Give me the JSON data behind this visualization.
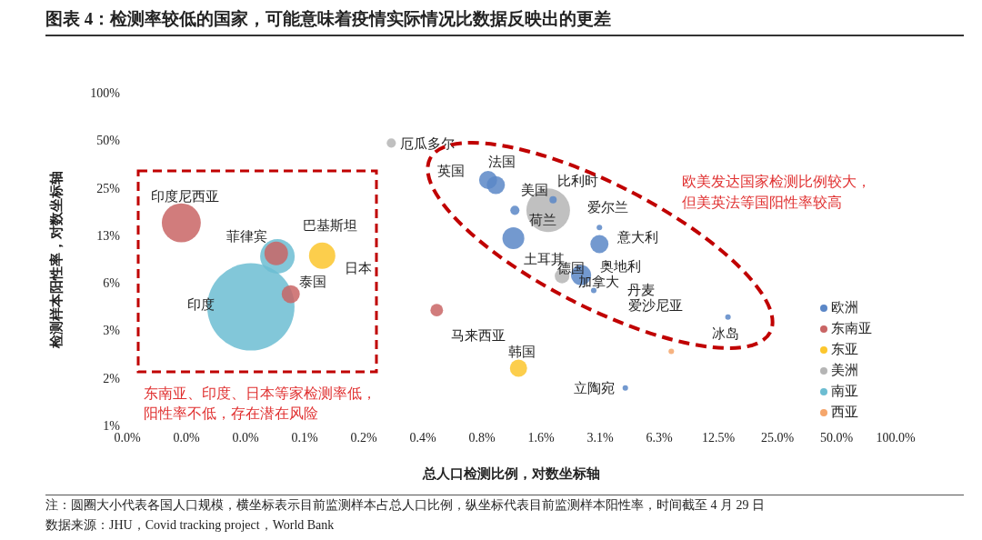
{
  "chart_data": {
    "type": "bubble",
    "title": "图表 4：检测率较低的国家，可能意味着疫情实际情况比数据反映出的更差",
    "xlabel": "总人口检测比例，对数坐标轴",
    "ylabel": "检测样本阳性率，对数坐标轴",
    "log": "xy",
    "marker": "circle",
    "legend": "bottom right",
    "xlim": [
      0.01220703125,
      100
    ],
    "xticks": [
      {
        "value": 0.01220703125,
        "label": "0.0%"
      },
      {
        "value": 0.0244140625,
        "label": "0.0%"
      },
      {
        "value": 0.048828125,
        "label": "0.0%"
      },
      {
        "value": 0.09765625,
        "label": "0.1%"
      },
      {
        "value": 0.1953125,
        "label": "0.2%"
      },
      {
        "value": 0.390625,
        "label": "0.4%"
      },
      {
        "value": 0.78125,
        "label": "0.8%"
      },
      {
        "value": 1.5625,
        "label": "1.6%"
      },
      {
        "value": 3.125,
        "label": "3.1%"
      },
      {
        "value": 6.25,
        "label": "6.3%"
      },
      {
        "value": 12.5,
        "label": "12.5%"
      },
      {
        "value": 25,
        "label": "25.0%"
      },
      {
        "value": 50,
        "label": "50.0%"
      },
      {
        "value": 100,
        "label": "100.0%"
      }
    ],
    "ylim": [
      0.78125,
      100
    ],
    "yticks": [
      {
        "value": 0.78125,
        "label": "1%"
      },
      {
        "value": 1.5625,
        "label": "2%"
      },
      {
        "value": 3.125,
        "label": "3%"
      },
      {
        "value": 6.25,
        "label": "6%"
      },
      {
        "value": 12.5,
        "label": "13%"
      },
      {
        "value": 25,
        "label": "25%"
      },
      {
        "value": 50,
        "label": "50%"
      },
      {
        "value": 100,
        "label": "100%"
      }
    ],
    "series": [
      {
        "name": "欧洲",
        "color": "#5b87c7",
        "x": [
          0.84,
          0.92,
          1.15,
          1.8,
          1.13,
          3.1,
          3.1,
          2.5,
          2.9,
          14,
          4.2
        ],
        "values": [
          28,
          26,
          18,
          21,
          12,
          11,
          14,
          7.0,
          5.6,
          3.8,
          1.35
        ],
        "sizes": [
          0.043,
          0.043,
          0.011,
          0.007,
          0.063,
          0.043,
          0.004,
          0.053,
          0.004,
          0.004,
          0.004
        ]
      },
      {
        "name": "东南亚",
        "color": "#c96565",
        "x": [
          0.023,
          0.07,
          0.083,
          0.46
        ],
        "values": [
          15,
          9.6,
          5.3,
          4.2
        ],
        "sizes": [
          0.2,
          0.073,
          0.043,
          0.021
        ]
      },
      {
        "name": "东亚",
        "color": "#fcc62d",
        "x": [
          0.12,
          1.2
        ],
        "values": [
          9.3,
          1.8
        ],
        "sizes": [
          0.091,
          0.039
        ]
      },
      {
        "name": "美洲",
        "color": "#b5b5b5",
        "x": [
          0.27,
          1.7,
          2.0
        ],
        "values": [
          48,
          18,
          6.9
        ],
        "sizes": [
          0.011,
          0.25,
          0.028
        ]
      },
      {
        "name": "南亚",
        "color": "#6cbdd2",
        "x": [
          0.052,
          0.071
        ],
        "values": [
          4.4,
          9.2
        ],
        "sizes": [
          1,
          0.157
        ]
      },
      {
        "name": "西亚",
        "color": "#f5a66b",
        "x": [
          7.2
        ],
        "values": [
          2.3
        ],
        "sizes": [
          0.004
        ]
      }
    ],
    "annotations": [
      {
        "text": "厄瓜多尔",
        "x": 0.27,
        "y": 48
      },
      {
        "text": "英国",
        "x": 0.84,
        "y": 28
      },
      {
        "text": "法国",
        "x": 0.92,
        "y": 26
      },
      {
        "text": "美国",
        "x": 1.7,
        "y": 18
      },
      {
        "text": "荷兰",
        "x": 1.15,
        "y": 18
      },
      {
        "text": "比利时",
        "x": 1.8,
        "y": 21
      },
      {
        "text": "爱尔兰",
        "x": 3.1,
        "y": 14
      },
      {
        "text": "意大利",
        "x": 3.1,
        "y": 11
      },
      {
        "text": "土耳其",
        "x": 1.13,
        "y": 12
      },
      {
        "text": "德国",
        "x": 2.5,
        "y": 7.0
      },
      {
        "text": "奥地利",
        "x": 2.9,
        "y": 5.6
      },
      {
        "text": "加拿大",
        "x": 2.0,
        "y": 6.9
      },
      {
        "text": "丹麦",
        "x": 2.9,
        "y": 5.6
      },
      {
        "text": "爱沙尼亚",
        "x": 2.9,
        "y": 5.6
      },
      {
        "text": "冰岛",
        "x": 14,
        "y": 3.8
      },
      {
        "text": "马来西亚",
        "x": 0.46,
        "y": 4.2
      },
      {
        "text": "韩国",
        "x": 1.2,
        "y": 1.8
      },
      {
        "text": "立陶宛",
        "x": 4.2,
        "y": 1.35
      },
      {
        "text": "印度尼西亚",
        "x": 0.023,
        "y": 15
      },
      {
        "text": "菲律宾",
        "x": 0.07,
        "y": 9.6
      },
      {
        "text": "巴基斯坦",
        "x": 0.071,
        "y": 9.2
      },
      {
        "text": "日本",
        "x": 0.12,
        "y": 9.3
      },
      {
        "text": "泰国",
        "x": 0.083,
        "y": 5.3
      },
      {
        "text": "印度",
        "x": 0.052,
        "y": 4.4
      },
      "东南亚、印度、日本等家检测率低，阳性率不低，存在潜在风险",
      "欧美发达国家检测比例较大，但美英法等国阳性率较高",
      "注：圆圈大小代表各国人口规模，横坐标表示目前监测样本占总人口比例，纵坐标代表目前监测样本阳性率，时间截至 4 月 29 日",
      "数据来源：JHU，Covid tracking project，World Bank"
    ]
  }
}
